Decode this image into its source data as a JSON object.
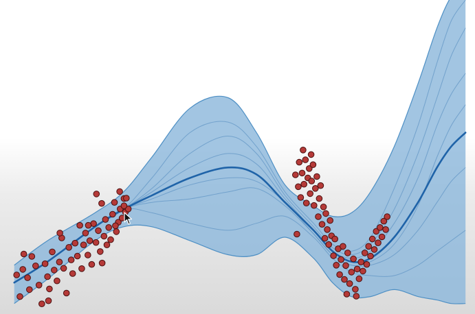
{
  "chart_data": {
    "type": "scatter",
    "title": "",
    "xlabel": "",
    "ylabel": "",
    "xlim": [
      0,
      10
    ],
    "ylim": [
      -3,
      6
    ],
    "grid": false,
    "legend": "none",
    "colors": {
      "band_fill": "#8db8dc",
      "band_edge": "#4d8fc4",
      "mean_line": "#1f63a8",
      "samples": "#5e93c3",
      "points": "#b53a38",
      "points_edge": "#4a1010"
    },
    "band": {
      "x": [
        0.3,
        1.0,
        2.0,
        2.6,
        3.2,
        4.0,
        4.8,
        5.4,
        6.0,
        6.6,
        7.0,
        7.4,
        7.8,
        8.3,
        8.8,
        9.2,
        9.5,
        9.8
      ],
      "upper": [
        -1.6,
        -0.9,
        -0.1,
        0.5,
        1.5,
        2.9,
        3.2,
        2.2,
        0.7,
        0.1,
        -0.2,
        -0.1,
        0.5,
        1.8,
        3.6,
        5.2,
        6.1,
        6.5
      ],
      "lower": [
        -2.7,
        -2.0,
        -0.9,
        -0.5,
        -0.5,
        -0.9,
        -1.3,
        -1.3,
        -0.8,
        -1.4,
        -2.1,
        -2.5,
        -2.5,
        -2.3,
        -2.5,
        -2.6,
        -2.7,
        -2.7
      ]
    },
    "series": [
      {
        "x": [
          0.3,
          1.0,
          2.0,
          2.6,
          3.2,
          4.0,
          4.8,
          5.4,
          6.0,
          6.6,
          7.0,
          7.4,
          7.8,
          8.3,
          8.8,
          9.2,
          9.5,
          9.8
        ],
        "values": [
          -2.1,
          -1.5,
          -0.5,
          0.0,
          0.4,
          0.9,
          1.2,
          1.0,
          0.2,
          -0.6,
          -1.2,
          -1.5,
          -1.4,
          -0.8,
          0.2,
          1.2,
          1.8,
          2.2
        ]
      }
    ],
    "samples": [
      {
        "values": [
          -2.1,
          -1.5,
          -0.5,
          0.0,
          0.6,
          1.6,
          2.1,
          1.6,
          0.4,
          -0.5,
          -1.1,
          -1.3,
          -1.0,
          0.0,
          1.6,
          3.2,
          4.4,
          5.2
        ]
      },
      {
        "values": [
          -2.1,
          -1.5,
          -0.5,
          0.0,
          0.2,
          0.3,
          0.5,
          0.6,
          0.1,
          -0.7,
          -1.3,
          -1.6,
          -1.6,
          -1.3,
          -0.6,
          0.2,
          0.8,
          1.2
        ]
      },
      {
        "values": [
          -2.1,
          -1.5,
          -0.5,
          0.0,
          0.9,
          2.2,
          2.5,
          1.8,
          0.5,
          -0.4,
          -1.0,
          -1.2,
          -0.8,
          0.6,
          2.4,
          4.2,
          5.4,
          6.0
        ]
      },
      {
        "values": [
          -2.1,
          -1.5,
          -0.5,
          0.0,
          -0.1,
          -0.4,
          -0.6,
          -0.4,
          -0.2,
          -0.8,
          -1.4,
          -1.8,
          -1.9,
          -1.9,
          -1.6,
          -1.2,
          -0.9,
          -0.6
        ]
      },
      {
        "values": [
          -2.1,
          -1.5,
          -0.5,
          0.0,
          0.5,
          1.2,
          1.6,
          1.3,
          0.3,
          -0.6,
          -1.2,
          -1.4,
          -1.2,
          -0.4,
          0.9,
          2.4,
          3.3,
          3.9
        ]
      },
      {
        "values": [
          -2.1,
          -1.5,
          -0.5,
          0.0,
          0.3,
          0.7,
          0.9,
          0.8,
          0.2,
          -0.7,
          -1.3,
          -1.6,
          -1.5,
          -1.0,
          0.1,
          1.5,
          2.4,
          3.0
        ]
      }
    ],
    "points": [
      [
        0.35,
        -1.88
      ],
      [
        0.5,
        -1.28
      ],
      [
        0.42,
        -2.5
      ],
      [
        0.58,
        -1.96
      ],
      [
        0.67,
        -1.35
      ],
      [
        0.75,
        -1.62
      ],
      [
        0.82,
        -2.17
      ],
      [
        0.88,
        -2.71
      ],
      [
        0.95,
        -1.56
      ],
      [
        1.0,
        -1.93
      ],
      [
        1.04,
        -2.28
      ],
      [
        1.1,
        -1.22
      ],
      [
        1.14,
        -1.74
      ],
      [
        1.2,
        -2.05
      ],
      [
        1.25,
        -1.51
      ],
      [
        1.3,
        -0.82
      ],
      [
        1.34,
        -1.69
      ],
      [
        1.4,
        -2.4
      ],
      [
        1.45,
        -1.09
      ],
      [
        1.5,
        -1.45
      ],
      [
        1.53,
        -1.84
      ],
      [
        1.58,
        -0.97
      ],
      [
        1.63,
        -1.34
      ],
      [
        1.68,
        -0.46
      ],
      [
        1.72,
        -1.7
      ],
      [
        1.76,
        -1.02
      ],
      [
        1.8,
        -0.68
      ],
      [
        1.85,
        -1.31
      ],
      [
        1.89,
        -0.9
      ],
      [
        1.93,
        -1.58
      ],
      [
        1.97,
        -0.41
      ],
      [
        2.02,
        -0.95
      ],
      [
        2.07,
        -0.61
      ],
      [
        2.11,
        -1.21
      ],
      [
        2.14,
        0.17
      ],
      [
        2.19,
        -0.77
      ],
      [
        2.22,
        -0.29
      ],
      [
        2.25,
        -1.02
      ],
      [
        2.29,
        -0.52
      ],
      [
        2.33,
        -0.87
      ],
      [
        2.37,
        -0.14
      ],
      [
        2.41,
        0.2
      ],
      [
        2.45,
        -0.64
      ],
      [
        2.49,
        -0.37
      ],
      [
        2.53,
        0.01
      ],
      [
        2.57,
        -0.25
      ],
      [
        2.61,
        0.31
      ],
      [
        2.64,
        -0.08
      ],
      [
        2.66,
        0.32
      ],
      [
        2.7,
        0.01
      ],
      [
        2.61,
        0.1
      ],
      [
        2.52,
        0.51
      ],
      [
        2.43,
        -0.47
      ],
      [
        2.15,
        -1.54
      ],
      [
        0.62,
        -2.3
      ],
      [
        1.02,
        -2.62
      ],
      [
        1.26,
        -0.68
      ],
      [
        1.86,
        -0.46
      ],
      [
        2.03,
        0.44
      ],
      [
        0.48,
        -1.72
      ],
      [
        6.22,
        0.99
      ],
      [
        6.28,
        0.65
      ],
      [
        6.3,
        1.35
      ],
      [
        6.33,
        0.34
      ],
      [
        6.36,
        1.04
      ],
      [
        6.4,
        0.72
      ],
      [
        6.43,
        1.42
      ],
      [
        6.45,
        0.18
      ],
      [
        6.48,
        0.9
      ],
      [
        6.51,
        1.17
      ],
      [
        6.53,
        0.45
      ],
      [
        6.56,
        0.81
      ],
      [
        6.59,
        1.28
      ],
      [
        6.61,
        0.11
      ],
      [
        6.64,
        0.6
      ],
      [
        6.67,
        0.94
      ],
      [
        6.7,
        -0.21
      ],
      [
        6.72,
        0.31
      ],
      [
        6.75,
        0.68
      ],
      [
        6.78,
        -0.43
      ],
      [
        6.81,
        0.07
      ],
      [
        6.84,
        -0.83
      ],
      [
        6.86,
        -0.12
      ],
      [
        6.89,
        -0.58
      ],
      [
        6.92,
        -1.01
      ],
      [
        6.95,
        -0.32
      ],
      [
        6.98,
        -0.76
      ],
      [
        7.02,
        -1.33
      ],
      [
        7.05,
        -0.85
      ],
      [
        7.08,
        -1.6
      ],
      [
        7.12,
        -1.13
      ],
      [
        7.15,
        -1.87
      ],
      [
        7.18,
        -1.44
      ],
      [
        7.22,
        -1.06
      ],
      [
        7.25,
        -2.01
      ],
      [
        7.28,
        -1.61
      ],
      [
        7.32,
        -1.25
      ],
      [
        7.36,
        -2.13
      ],
      [
        7.4,
        -1.8
      ],
      [
        7.44,
        -1.42
      ],
      [
        7.48,
        -2.29
      ],
      [
        7.52,
        -1.71
      ],
      [
        7.56,
        -1.99
      ],
      [
        7.6,
        -1.51
      ],
      [
        7.64,
        -1.77
      ],
      [
        7.68,
        -1.25
      ],
      [
        7.72,
        -1.58
      ],
      [
        7.76,
        -1.06
      ],
      [
        7.8,
        -1.34
      ],
      [
        7.84,
        -0.85
      ],
      [
        7.88,
        -1.15
      ],
      [
        7.92,
        -0.63
      ],
      [
        7.96,
        -0.96
      ],
      [
        8.0,
        -0.52
      ],
      [
        8.04,
        -0.79
      ],
      [
        8.08,
        -0.34
      ],
      [
        8.12,
        -0.58
      ],
      [
        8.15,
        -0.21
      ],
      [
        6.25,
        -0.71
      ],
      [
        7.5,
        -2.49
      ],
      [
        7.3,
        -2.43
      ],
      [
        6.38,
        1.7
      ],
      [
        6.55,
        1.57
      ]
    ]
  }
}
